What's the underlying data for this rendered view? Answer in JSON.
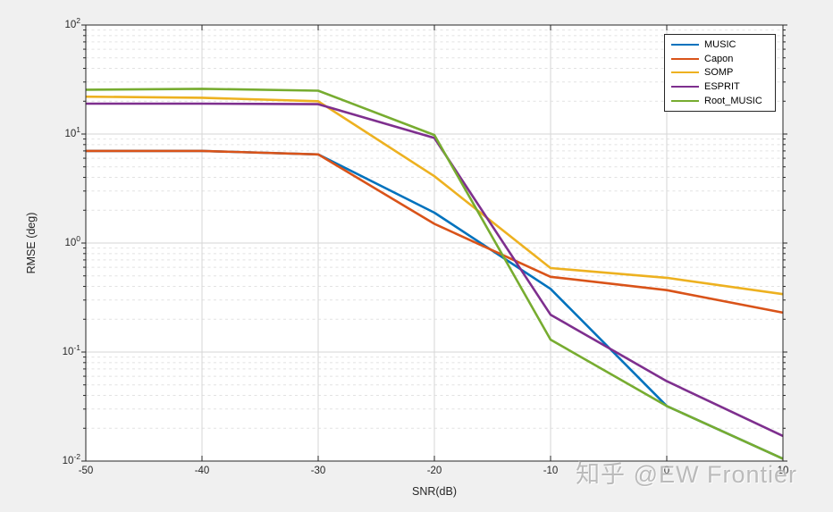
{
  "figure": {
    "background_color": "#f0f0f0",
    "plot_background_color": "#ffffff",
    "axis_color": "#262626",
    "grid_major_color": "#d6d6d6",
    "grid_minor_color": "#e2e2e2"
  },
  "chart_data": {
    "type": "line",
    "title": "",
    "xlabel": "SNR(dB)",
    "ylabel": "RMSE (deg)",
    "xlim": [
      -50,
      10
    ],
    "ylim_log10": [
      -2,
      2
    ],
    "x": [
      -50,
      -40,
      -30,
      -20,
      -10,
      0,
      10
    ],
    "x_tick_labels": [
      "-50",
      "-40",
      "-30",
      "-20",
      "-10",
      "0",
      "10"
    ],
    "y_tick_exponents": [
      2,
      1,
      0,
      -1,
      -2
    ],
    "grid": true,
    "y_minor_grid": true,
    "legend_position": "top-right",
    "series": [
      {
        "name": "MUSIC",
        "color": "#0072BD",
        "values": [
          7,
          7,
          6.5,
          1.9,
          0.38,
          0.032,
          0.0105
        ]
      },
      {
        "name": "Capon",
        "color": "#D95319",
        "values": [
          7,
          7,
          6.5,
          1.5,
          0.49,
          0.37,
          0.23
        ]
      },
      {
        "name": "SOMP",
        "color": "#EDB120",
        "values": [
          22,
          21.5,
          20,
          4.1,
          0.59,
          0.48,
          0.34
        ]
      },
      {
        "name": "ESPRIT",
        "color": "#7E2F8E",
        "values": [
          19,
          19,
          18.8,
          9.2,
          0.22,
          0.054,
          0.017
        ]
      },
      {
        "name": "Root_MUSIC",
        "color": "#77AC30",
        "values": [
          25.5,
          26,
          25,
          9.8,
          0.13,
          0.032,
          0.0105
        ]
      }
    ]
  },
  "watermark": {
    "text": "知乎 @EW Frontier"
  }
}
